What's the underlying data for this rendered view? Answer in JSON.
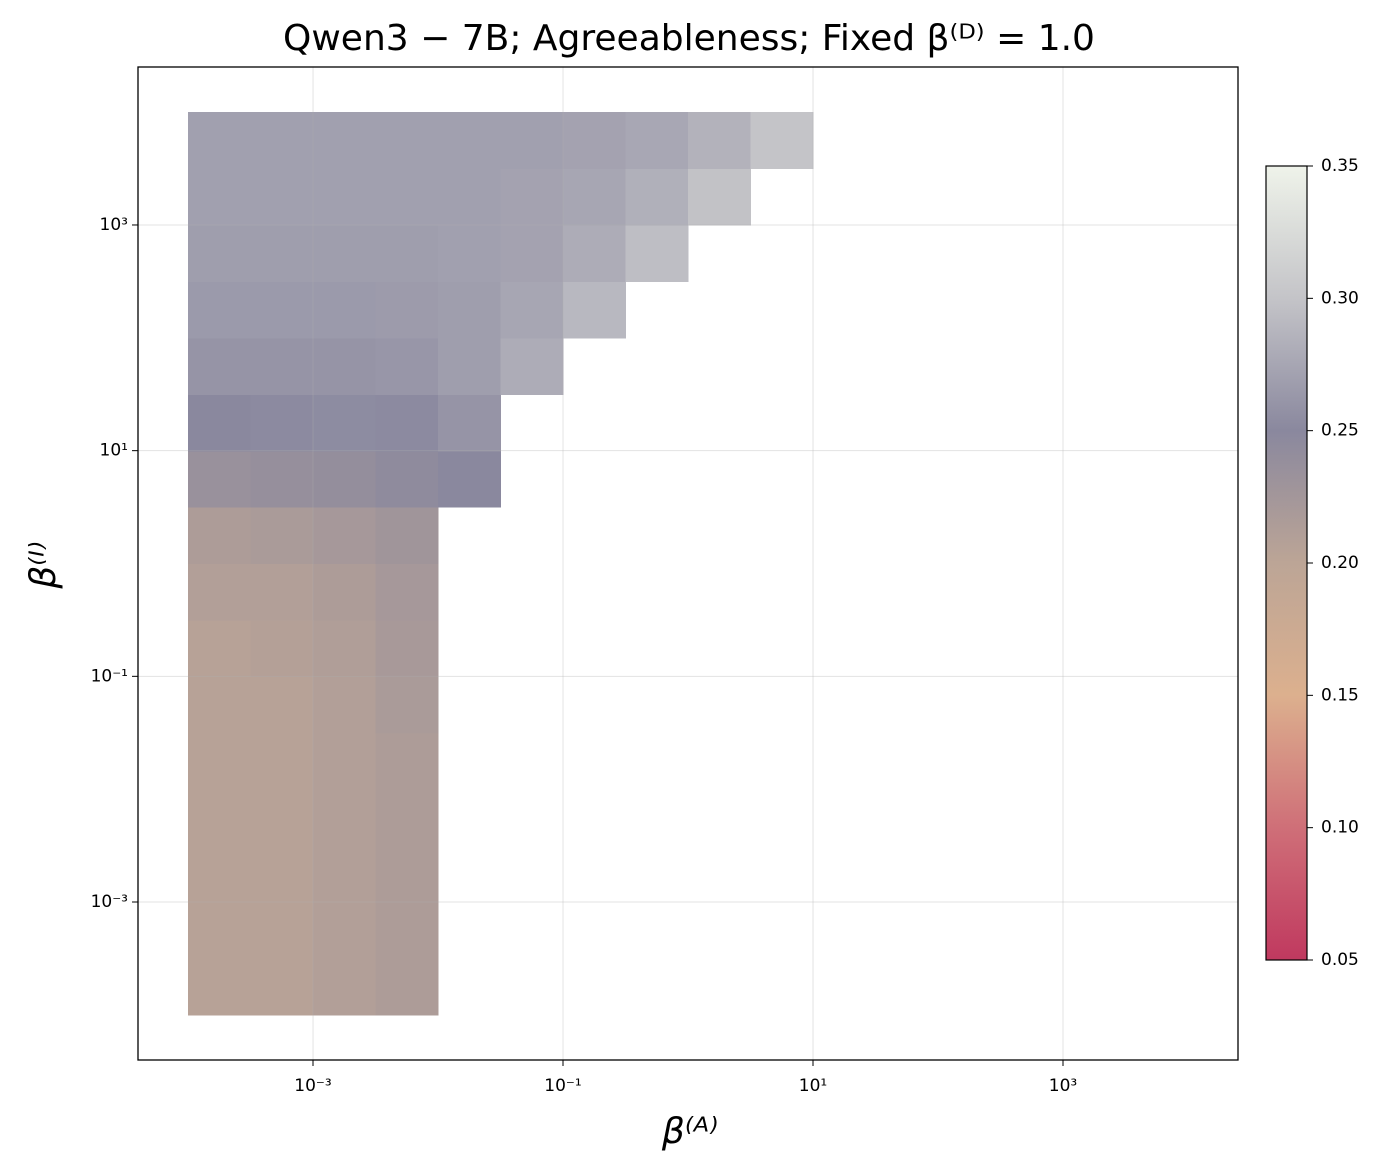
{
  "chart_data": {
    "type": "heatmap",
    "title": "Qwen3 − 7B;  Agreeableness;  Fixed β⁽ᴰ⁾ = 1.0",
    "x_label": "β⁽ᴬ⁾",
    "y_label": "β⁽ᴵ⁾",
    "log_x": true,
    "log_y": true,
    "grid": true,
    "xlim": [
      3.98e-05,
      25119
    ],
    "ylim": [
      3.98e-05,
      25119
    ],
    "xticks": [
      {
        "value": 0.001,
        "label": "10⁻³"
      },
      {
        "value": 0.1,
        "label": "10⁻¹"
      },
      {
        "value": 10,
        "label": "10¹"
      },
      {
        "value": 1000,
        "label": "10³"
      }
    ],
    "yticks": [
      {
        "value": 0.001,
        "label": "10⁻³"
      },
      {
        "value": 0.1,
        "label": "10⁻¹"
      },
      {
        "value": 10,
        "label": "10¹"
      },
      {
        "value": 1000,
        "label": "10³"
      }
    ],
    "x_edges": [
      0.0001,
      0.00031623,
      0.001,
      0.0031623,
      0.01,
      0.031623,
      0.1,
      0.31623,
      1,
      3.1623,
      10,
      31.623,
      100,
      316.23,
      1000,
      3162.3,
      10000
    ],
    "y_edges": [
      0.0001,
      0.00031623,
      0.001,
      0.0031623,
      0.01,
      0.031623,
      0.1,
      0.31623,
      1,
      3.1623,
      10,
      31.623,
      100,
      316.23,
      1000,
      3162.3,
      10000
    ],
    "z": [
      [
        0.205,
        0.205,
        0.21,
        0.215,
        null,
        null,
        null,
        null,
        null,
        null,
        null,
        null,
        null,
        null,
        null,
        null
      ],
      [
        0.205,
        0.205,
        0.21,
        0.215,
        null,
        null,
        null,
        null,
        null,
        null,
        null,
        null,
        null,
        null,
        null,
        null
      ],
      [
        0.205,
        0.205,
        0.21,
        0.215,
        null,
        null,
        null,
        null,
        null,
        null,
        null,
        null,
        null,
        null,
        null,
        null
      ],
      [
        0.205,
        0.205,
        0.21,
        0.215,
        null,
        null,
        null,
        null,
        null,
        null,
        null,
        null,
        null,
        null,
        null,
        null
      ],
      [
        0.205,
        0.205,
        0.21,
        0.215,
        null,
        null,
        null,
        null,
        null,
        null,
        null,
        null,
        null,
        null,
        null,
        null
      ],
      [
        0.205,
        0.205,
        0.21,
        0.218,
        null,
        null,
        null,
        null,
        null,
        null,
        null,
        null,
        null,
        null,
        null,
        null
      ],
      [
        0.205,
        0.208,
        0.212,
        0.22,
        null,
        null,
        null,
        null,
        null,
        null,
        null,
        null,
        null,
        null,
        null,
        null
      ],
      [
        0.21,
        0.21,
        0.215,
        0.222,
        null,
        null,
        null,
        null,
        null,
        null,
        null,
        null,
        null,
        null,
        null,
        null
      ],
      [
        0.215,
        0.218,
        0.222,
        0.228,
        null,
        null,
        null,
        null,
        null,
        null,
        null,
        null,
        null,
        null,
        null,
        null
      ],
      [
        0.235,
        0.238,
        0.24,
        0.245,
        0.25,
        null,
        null,
        null,
        null,
        null,
        null,
        null,
        null,
        null,
        null,
        null
      ],
      [
        0.25,
        0.252,
        0.253,
        0.252,
        0.26,
        null,
        null,
        null,
        null,
        null,
        null,
        null,
        null,
        null,
        null,
        null
      ],
      [
        0.26,
        0.26,
        0.26,
        0.262,
        0.268,
        0.28,
        null,
        null,
        null,
        null,
        null,
        null,
        null,
        null,
        null,
        null
      ],
      [
        0.265,
        0.265,
        0.265,
        0.266,
        0.268,
        0.275,
        0.29,
        null,
        null,
        null,
        null,
        null,
        null,
        null,
        null,
        null
      ],
      [
        0.268,
        0.268,
        0.268,
        0.268,
        0.27,
        0.272,
        0.28,
        0.295,
        null,
        null,
        null,
        null,
        null,
        null,
        null,
        null
      ],
      [
        0.27,
        0.27,
        0.27,
        0.27,
        0.27,
        0.272,
        0.275,
        0.283,
        0.298,
        null,
        null,
        null,
        null,
        null,
        null,
        null
      ],
      [
        0.27,
        0.27,
        0.27,
        0.27,
        0.27,
        0.27,
        0.272,
        0.276,
        0.285,
        0.3,
        null,
        null,
        null,
        null,
        null,
        null
      ]
    ],
    "colormap": [
      "#c0395f",
      "#cf6f78",
      "#dcb08e",
      "#bca596",
      "#8a889e",
      "#c4c4c8",
      "#eff3ea"
    ],
    "clim": [
      0.05,
      0.35
    ],
    "cticks": [
      0.05,
      {
        "value": 0.1,
        "label": "0.10"
      },
      0.15,
      {
        "value": 0.2,
        "label": "0.20"
      },
      0.25,
      {
        "value": 0.3,
        "label": "0.30"
      },
      0.35
    ]
  }
}
